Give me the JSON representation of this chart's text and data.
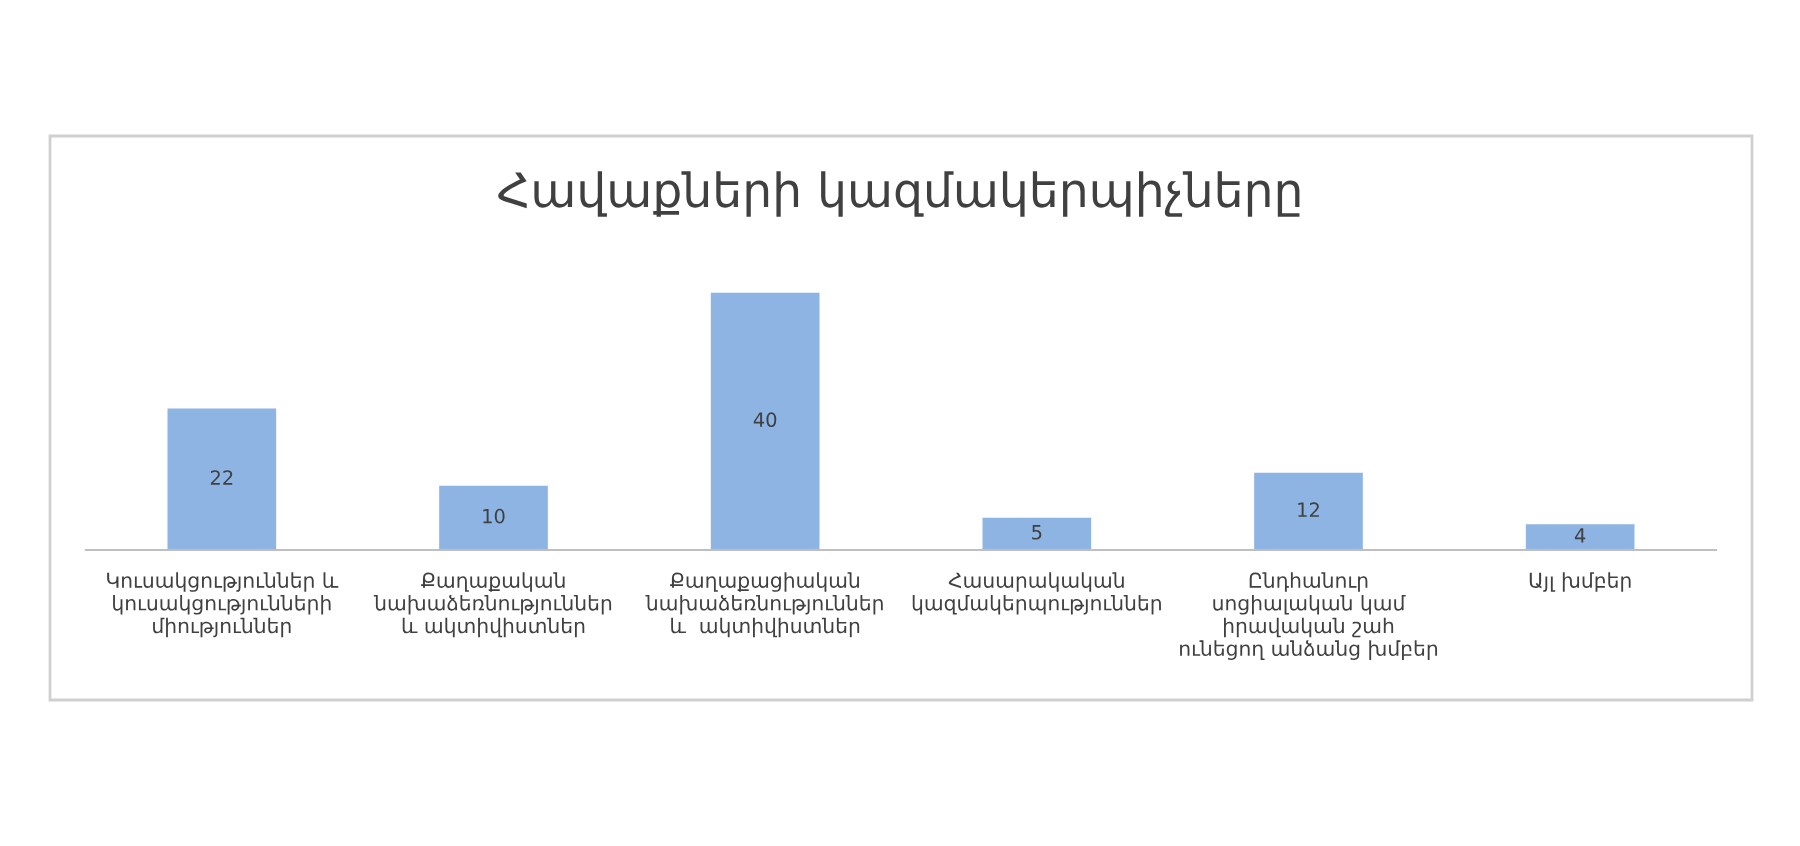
{
  "chart_data": {
    "type": "bar",
    "title": "Հավաքների կազմակերպիչները",
    "categories": [
      "Կուսակցություններ և\nկուսակցությունների\nմիություններ",
      "Քաղաքական\nնախաձեռնություններ\nև ակտիվիստներ",
      "Քաղաքացիական\nնախաձեռնություններ\nև  ակտիվիստներ",
      "Հասարակական\nկազմակերպություններ",
      "Ընդհանուր\nսոցիալական կամ\nիրավական շահ\nունեցող անձանց խմբեր",
      "Այլ խմբեր"
    ],
    "values": [
      22,
      10,
      40,
      5,
      12,
      4
    ],
    "color": "#8db4e2",
    "data_labels": true
  }
}
